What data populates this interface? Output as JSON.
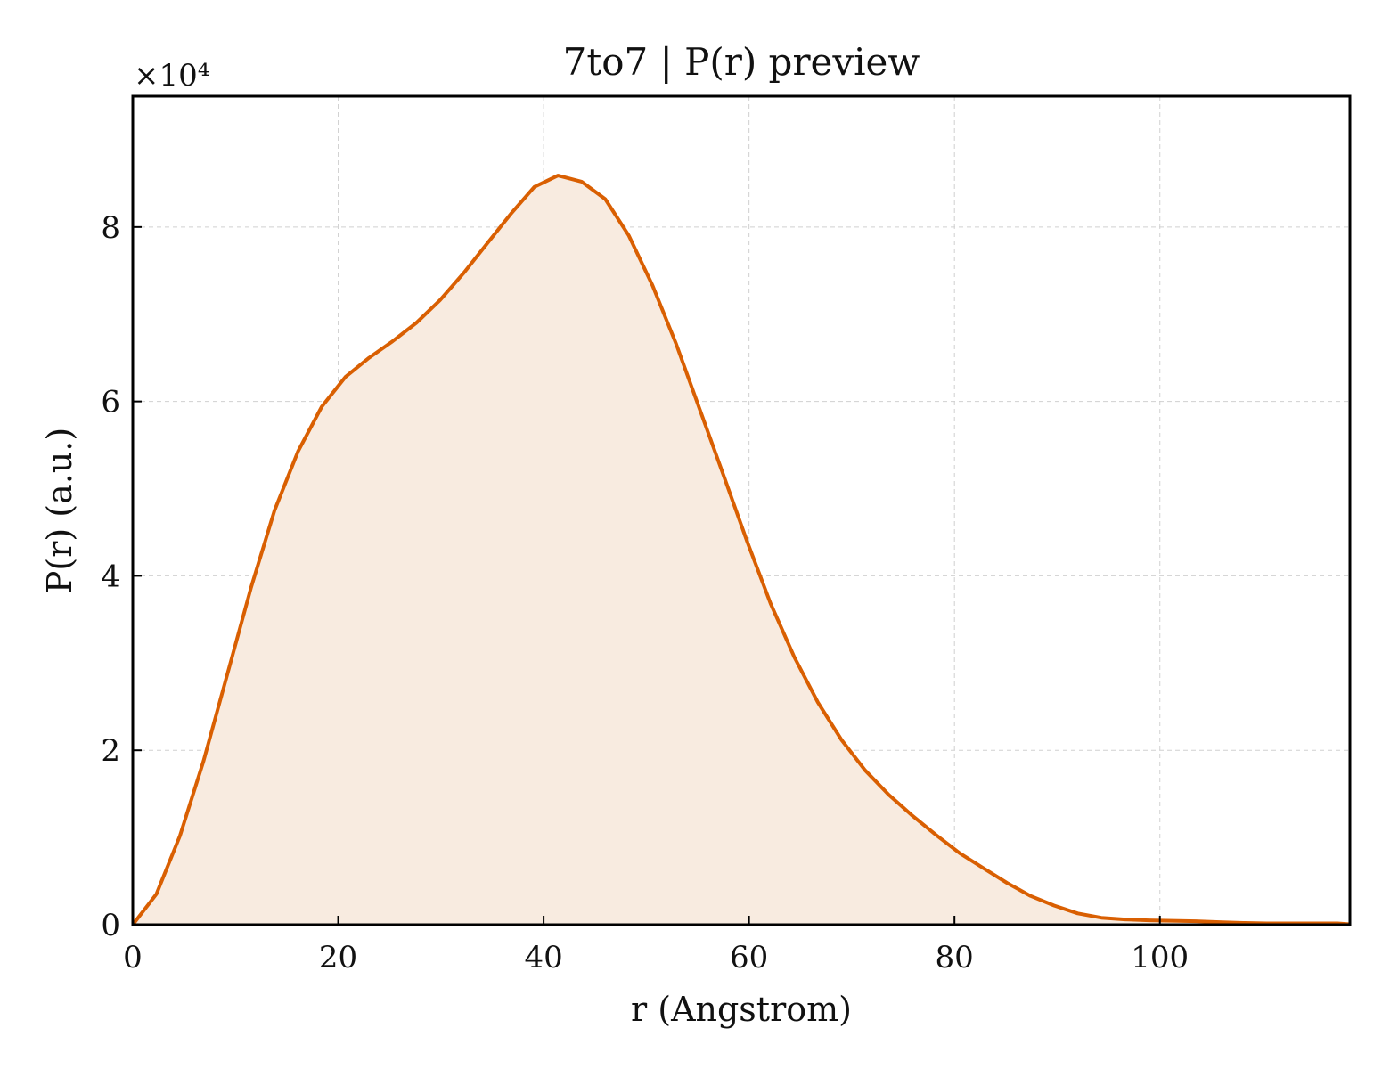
{
  "chart_data": {
    "type": "area",
    "title": "7to7 | P(r) preview",
    "xlabel": "r (Angstrom)",
    "ylabel": "P(r) (a.u.)",
    "y_offset_label": "×10⁴",
    "y_scale": 10000,
    "xlim": [
      0,
      118.5
    ],
    "ylim": [
      0,
      95000
    ],
    "xticks": [
      0,
      20,
      40,
      60,
      80,
      100
    ],
    "xtick_labels": [
      "0",
      "20",
      "40",
      "60",
      "80",
      "100"
    ],
    "yticks": [
      0,
      20000,
      40000,
      60000,
      80000
    ],
    "ytick_labels": [
      "0",
      "2",
      "4",
      "6",
      "8"
    ],
    "grid": true,
    "line_color": "#d95f02",
    "fill_color": "#f8ebe0",
    "x": [
      0,
      2.3,
      4.6,
      6.9,
      9.2,
      11.5,
      13.8,
      16.1,
      18.4,
      20.7,
      23.0,
      25.3,
      27.6,
      29.9,
      32.2,
      34.5,
      36.8,
      39.1,
      41.4,
      43.7,
      46.0,
      48.3,
      50.6,
      52.9,
      55.2,
      57.5,
      59.8,
      62.1,
      64.4,
      66.7,
      69.0,
      71.3,
      73.6,
      75.9,
      78.2,
      80.5,
      82.8,
      85.1,
      87.4,
      89.7,
      92.0,
      94.3,
      96.6,
      98.9,
      101.2,
      103.5,
      105.8,
      108.1,
      110.4,
      112.7,
      115.0,
      117.3,
      118.5
    ],
    "y": [
      0,
      3500,
      10200,
      18800,
      28700,
      38600,
      47500,
      54300,
      59400,
      62800,
      65000,
      66900,
      69000,
      71600,
      74700,
      78100,
      81500,
      84600,
      85900,
      85200,
      83200,
      79000,
      73300,
      66600,
      59100,
      51600,
      44000,
      36800,
      30700,
      25500,
      21200,
      17700,
      14900,
      12500,
      10300,
      8200,
      6500,
      4800,
      3300,
      2200,
      1300,
      800,
      600,
      500,
      450,
      400,
      300,
      200,
      150,
      150,
      150,
      150,
      50
    ]
  }
}
